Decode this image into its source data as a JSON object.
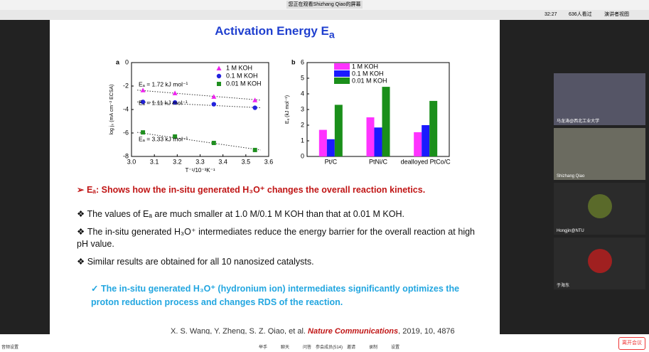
{
  "window": {
    "title": "您正在观看Shizhang Qiao的屏幕"
  },
  "toolbar": {
    "time": "32:27",
    "viewers": "636人看过",
    "view_mode": "演讲者视图"
  },
  "slide": {
    "title": "Activation Energy E",
    "title_sub": "a",
    "chart_a": {
      "type": "scatter",
      "panel": "a",
      "x_label": "T⁻¹/10⁻³K⁻¹",
      "y_label": "log j₀ (mA cm⁻² ECSA)",
      "xlim": [
        3.0,
        3.6
      ],
      "xticks": [
        {
          "value": 3.0,
          "label": "3.0"
        },
        3.1,
        3.2,
        3.3,
        3.4,
        3.5,
        {
          "value": 3.6,
          "label": "3.6"
        }
      ],
      "ylim": [
        -8,
        0
      ],
      "yticks": [
        0,
        -2,
        -4,
        -6,
        -8
      ],
      "legend": "upper right",
      "series": [
        {
          "name": "0.01 M KOH",
          "color": "#1f8f1f",
          "marker": "square",
          "x": [
            3.05,
            3.19,
            3.36,
            3.54
          ],
          "values": [
            -5.95,
            -6.3,
            -6.85,
            -7.45
          ]
        },
        {
          "name": "0.1 M KOH",
          "color": "#2222dd",
          "marker": "circle",
          "x": [
            3.05,
            3.19,
            3.36,
            3.54
          ],
          "values": [
            -3.35,
            -3.4,
            -3.55,
            -3.85
          ]
        },
        {
          "name": "1 M KOH",
          "color": "#ee22ee",
          "marker": "triangle",
          "x": [
            3.05,
            3.19,
            3.36,
            3.54
          ],
          "values": [
            -2.35,
            -2.6,
            -2.9,
            -3.2
          ]
        }
      ],
      "annotations": [
        "Eₐ = 1.72 kJ mol⁻¹",
        "Eₐ = 1.11 kJ mol⁻¹",
        "Eₐ = 3.33 kJ mol⁻¹"
      ]
    },
    "chart_b": {
      "type": "bar",
      "panel": "b",
      "y_label": "Eₐ (kJ mol⁻¹)",
      "categories": [
        "Pt/C",
        "PtNi/C",
        "dealloyed PtCo/C"
      ],
      "ylim": [
        0,
        6
      ],
      "yticks": [
        0,
        1,
        2,
        3,
        4,
        5,
        6
      ],
      "legend": "upper left",
      "series": [
        {
          "name": "1 M KOH",
          "color": "#ff33ff",
          "values": [
            1.7,
            2.5,
            1.55
          ]
        },
        {
          "name": "0.1 M KOH",
          "color": "#1a1aff",
          "values": [
            1.1,
            1.85,
            2.0
          ]
        },
        {
          "name": "0.01 M KOH",
          "color": "#1a8f1a",
          "values": [
            3.3,
            4.45,
            3.55
          ]
        }
      ]
    },
    "highlight": "Eₐ: Shows how the in-situ generated H₃O⁺ changes the overall reaction kinetics.",
    "bullets": [
      "The values of Eₐ are much smaller at 1.0 M/0.1 M KOH than that at 0.01 M KOH.",
      "The in-situ generated H₃O⁺ intermediates reduce the energy barrier for the overall reaction at high pH value.",
      "Similar results are obtained for all 10 nanosized catalysts."
    ],
    "conclusion": "The in-situ generated H₃O⁺ (hydronium ion) intermediates significantly optimizes the proton reduction process and changes RDS of the reaction.",
    "citation": {
      "authors": "X. S. Wang, Y. Zheng, S. Z. Qiao, et al.",
      "journal": "Nature Communications",
      "details": ", 2019, 10, 4876"
    }
  },
  "participants": [
    "马龙涛@西北工业大学",
    "Shizhang Qiao",
    "Hongjin@NTU",
    "于海东"
  ],
  "bottom_bar": {
    "audio": "音频设置",
    "buttons": [
      "举手",
      "聊天",
      "问答",
      "参会成员(514)",
      "邀请",
      "录制",
      "设置"
    ],
    "leave": "离开会议"
  }
}
